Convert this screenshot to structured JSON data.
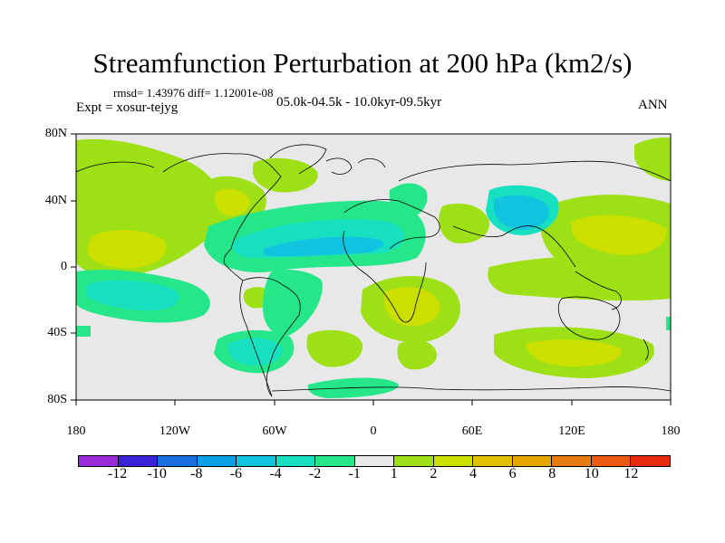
{
  "title": "Streamfunction Perturbation at 200 hPa (km2/s)",
  "stats": "rmsd= 1.43976  diff= 1.12001e-08",
  "expt": "Expt = xosur-tejyg",
  "period": "05.0k-04.5k - 10.0kyr-09.5kyr",
  "season": "ANN",
  "lat_labels": [
    "80N",
    "40N",
    "0",
    "40S",
    "80S"
  ],
  "lon_labels": [
    "180",
    "120W",
    "60W",
    "0",
    "60E",
    "120E",
    "180"
  ],
  "colorbar": {
    "colors": [
      "#9a2bdb",
      "#3a22d6",
      "#1a6fe0",
      "#0aa0e8",
      "#10c4e0",
      "#16e0c0",
      "#26e68a",
      "#e8e8e8",
      "#9ee016",
      "#cce000",
      "#e0c000",
      "#e6a600",
      "#e87a10",
      "#ea5a10",
      "#ea2a10"
    ],
    "labels": [
      "-12",
      "-10",
      "-8",
      "-6",
      "-4",
      "-2",
      "-1",
      "1",
      "2",
      "4",
      "6",
      "8",
      "10",
      "12"
    ]
  }
}
